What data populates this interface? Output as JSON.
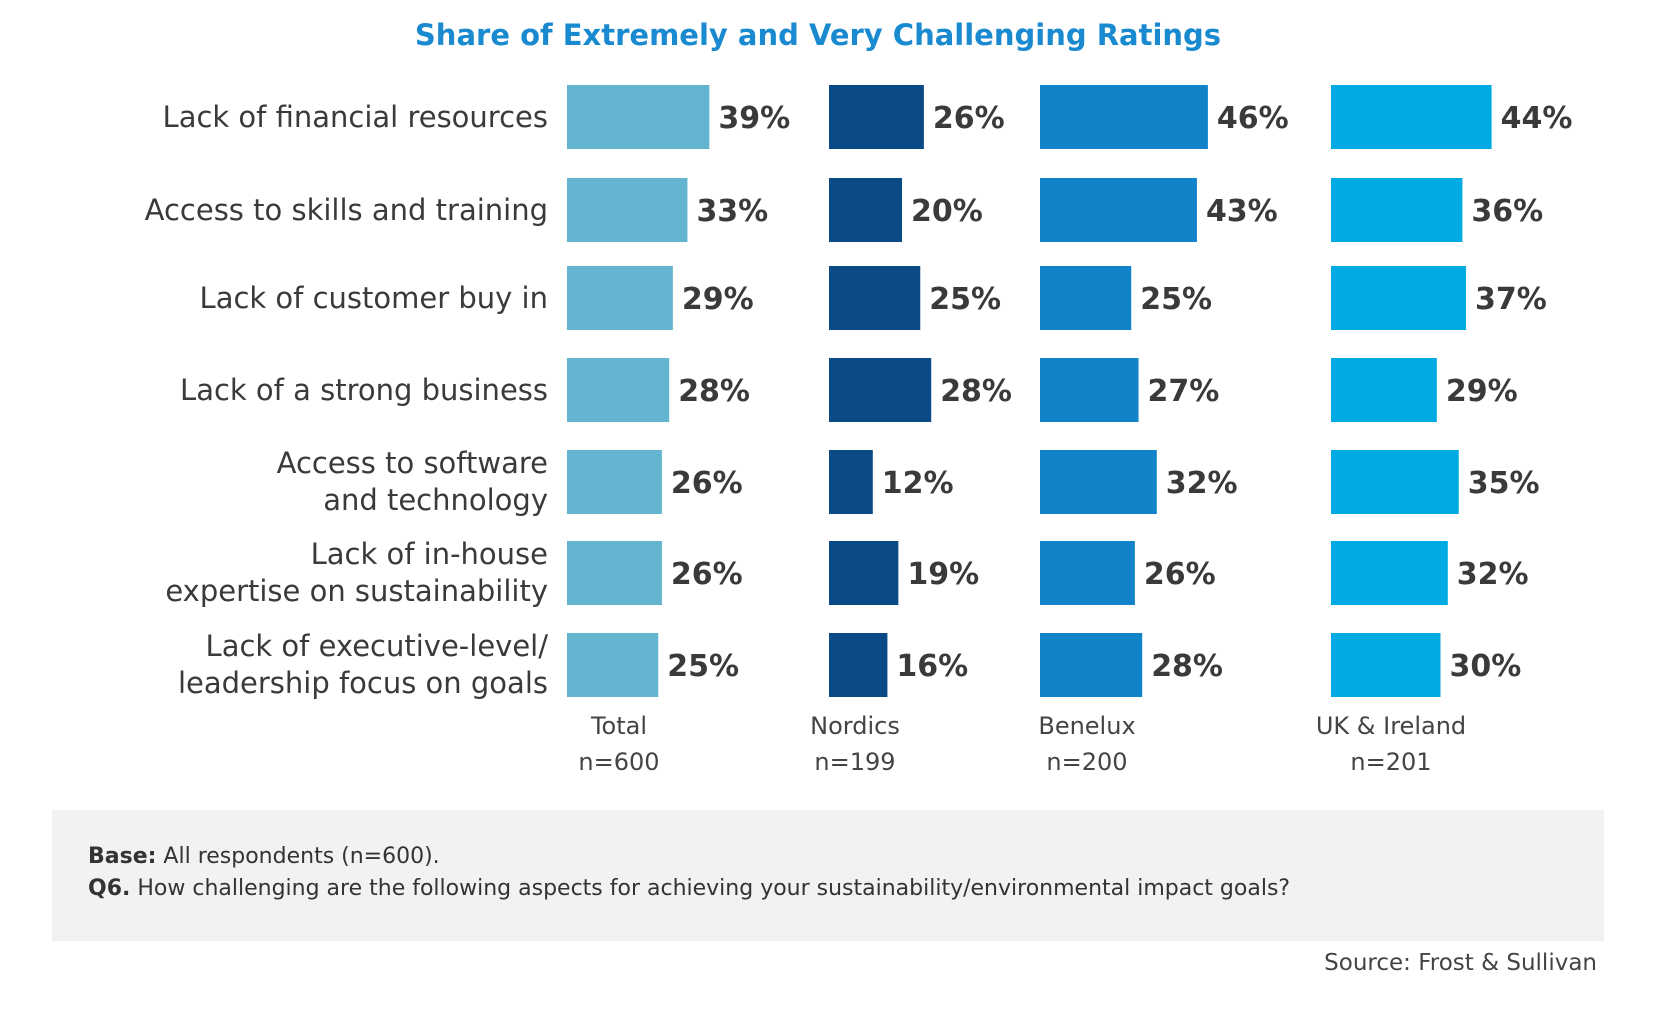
{
  "chart_data": {
    "type": "bar",
    "orientation": "horizontal",
    "title": "Share of Extremely and Very Challenging Ratings",
    "categories": [
      "Lack of financial resources",
      "Access to skills and training",
      "Lack of customer buy in",
      "Lack of a strong business",
      "Access to software and technology",
      "Lack of in-house expertise on sustainability",
      "Lack of executive-level/ leadership focus on goals"
    ],
    "category_lines": [
      [
        "Lack of financial resources"
      ],
      [
        "Access to skills and training"
      ],
      [
        "Lack of customer buy in"
      ],
      [
        "Lack of a strong business"
      ],
      [
        "Access to software",
        "and technology"
      ],
      [
        "Lack of in-house",
        "expertise on sustainability"
      ],
      [
        "Lack of executive-level/",
        "leadership focus on goals"
      ]
    ],
    "series": [
      {
        "name": "Total",
        "base": "n=600",
        "color": "#63b4cf",
        "values": [
          39,
          33,
          29,
          28,
          26,
          26,
          25
        ]
      },
      {
        "name": "Nordics",
        "base": "n=199",
        "color": "#0a4a87",
        "values": [
          26,
          20,
          25,
          28,
          12,
          19,
          16
        ]
      },
      {
        "name": "Benelux",
        "base": "n=200",
        "color": "#1283c8",
        "values": [
          46,
          43,
          25,
          27,
          32,
          26,
          28
        ]
      },
      {
        "name": "UK & Ireland",
        "base": "n=201",
        "color": "#00abe3",
        "values": [
          44,
          36,
          37,
          29,
          35,
          32,
          30
        ]
      }
    ],
    "value_suffix": "%",
    "grid": false,
    "legend": "bottom"
  },
  "note": {
    "base_label": "Base:",
    "base_text": " All respondents (n=600).",
    "q_label": "Q6.",
    "q_text": " How challenging are the following aspects for achieving your sustainability/environmental impact goals?"
  },
  "source": "Source: Frost & Sullivan"
}
